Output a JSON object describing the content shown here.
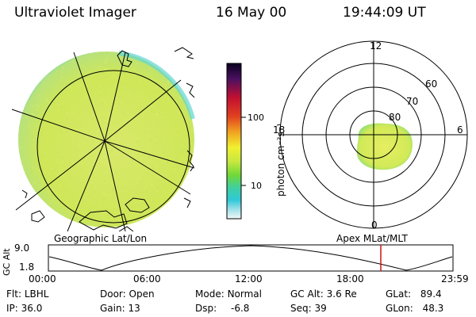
{
  "header": {
    "instrument": "Ultraviolet Imager",
    "date": "16 May 00",
    "time": "19:44:09 UT"
  },
  "colorbar": {
    "label": "photon cm⁻²s⁻¹",
    "ticks": [
      "100",
      "10"
    ],
    "scale": "log"
  },
  "polar_plot": {
    "mlt_labels": [
      "12",
      "18",
      "6",
      "0"
    ],
    "lat_labels": [
      "60",
      "70",
      "80"
    ]
  },
  "panel_labels": {
    "left": "Geographic Lat/Lon",
    "right": "Apex MLat/MLT"
  },
  "altitude_plot": {
    "axis_label": "GC Alt",
    "y_ticks": [
      "9.0",
      "1.8"
    ],
    "x_ticks": [
      "00:00",
      "06:00",
      "12:00",
      "18:00",
      "23:59"
    ],
    "marker_time": "19:44",
    "marker_color": "#d01010"
  },
  "footer": {
    "row1": [
      {
        "label": "Flt:",
        "value": "LBHL"
      },
      {
        "label": "Door:",
        "value": "Open"
      },
      {
        "label": "Mode:",
        "value": "Normal"
      },
      {
        "label": "GC Alt:",
        "value": "3.6 Re"
      },
      {
        "label": "GLat:",
        "value": "89.4"
      }
    ],
    "row2": [
      {
        "label": "IP:",
        "value": "36.0"
      },
      {
        "label": "Gain:",
        "value": "13"
      },
      {
        "label": "Dsp:",
        "value": "-6.8"
      },
      {
        "label": "Seq:",
        "value": "39"
      },
      {
        "label": "GLon:",
        "value": "48.3"
      }
    ]
  },
  "colors": {
    "auroral_fill": "#d8ec5a",
    "earth_fill": "#d4e86a",
    "edge_cyan": "#55d8d0"
  }
}
